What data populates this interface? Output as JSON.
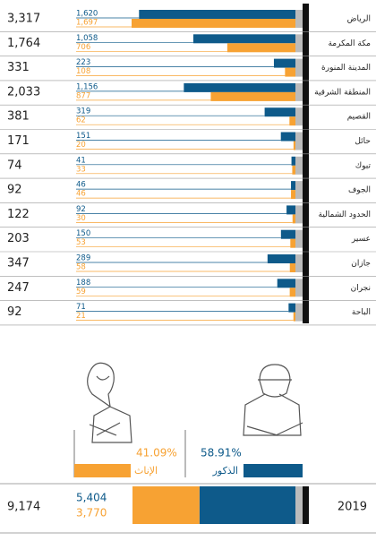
{
  "chart_data": {
    "type": "bar",
    "categories": [
      "الرياض",
      "مكة المكرمة",
      "المدينة المنورة",
      "المنطقة الشرقية",
      "القصيم",
      "حائل",
      "تبوك",
      "الجوف",
      "الحدود الشمالية",
      "عسير",
      "جازان",
      "نجران",
      "الباحة"
    ],
    "totals": {
      "values": [
        3317,
        1764,
        331,
        2033,
        381,
        171,
        74,
        92,
        122,
        203,
        347,
        247,
        92
      ],
      "value_labels": [
        "3,317",
        "1,764",
        "331",
        "2,033",
        "381",
        "171",
        "74",
        "92",
        "122",
        "203",
        "347",
        "247",
        "92"
      ]
    },
    "series": [
      {
        "name": "الذكور",
        "color": "#0e5a8a",
        "values": [
          1620,
          1058,
          223,
          1156,
          319,
          151,
          41,
          46,
          92,
          150,
          289,
          188,
          71
        ],
        "value_labels": [
          "1,620",
          "1,058",
          "223",
          "1,156",
          "319",
          "151",
          "41",
          "46",
          "92",
          "150",
          "289",
          "188",
          "71"
        ],
        "share": 58.91,
        "share_label": "58.91%",
        "total": 5404,
        "total_label": "5,404"
      },
      {
        "name": "الإناث",
        "color": "#f7a233",
        "values": [
          1697,
          706,
          108,
          877,
          62,
          20,
          33,
          46,
          30,
          53,
          58,
          59,
          21
        ],
        "value_labels": [
          "1,697",
          "706",
          "108",
          "877",
          "62",
          "20",
          "33",
          "46",
          "30",
          "53",
          "58",
          "59",
          "21"
        ],
        "share": 41.09,
        "share_label": "41.09%",
        "total": 3770,
        "total_label": "3,770"
      }
    ],
    "overall": {
      "year": "2019",
      "total": 9174,
      "total_label": "9,174"
    }
  }
}
